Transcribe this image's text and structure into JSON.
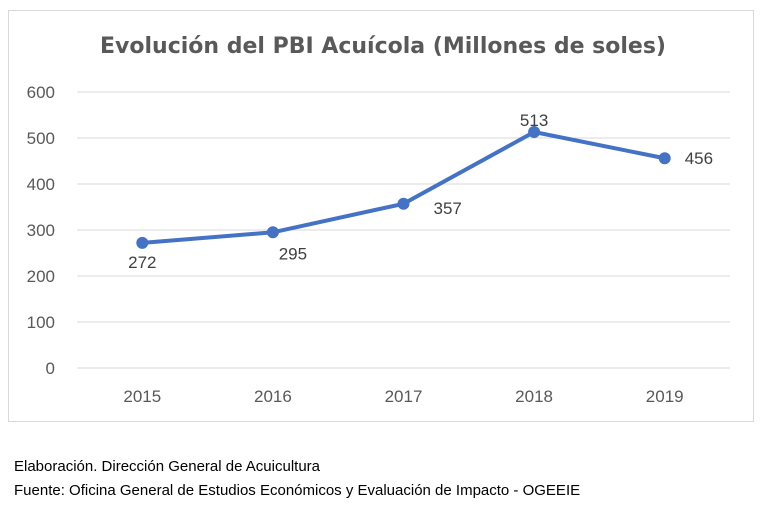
{
  "chart_data": {
    "type": "line",
    "title": "Evolución del PBI Acuícola (Millones de soles)",
    "categories": [
      "2015",
      "2016",
      "2017",
      "2018",
      "2019"
    ],
    "series": [
      {
        "name": "PBI Acuícola",
        "values": [
          272,
          295,
          357,
          513,
          456
        ],
        "color": "#4472c4"
      }
    ],
    "data_labels": [
      "272",
      "295",
      "357",
      "513",
      "456"
    ],
    "ylim": [
      0,
      600
    ],
    "yticks": [
      "0",
      "100",
      "200",
      "300",
      "400",
      "500",
      "600"
    ],
    "xlabel": "",
    "ylabel": "",
    "grid": true,
    "legend": "none"
  },
  "notes": {
    "elaboracion": "Elaboración. Dirección General de Acuicultura",
    "fuente": "Fuente: Oficina General de Estudios Económicos y Evaluación de Impacto - OGEEIE"
  },
  "colors": {
    "line": "#4472c4",
    "grid": "#d9d9d9",
    "text": "#595959"
  }
}
